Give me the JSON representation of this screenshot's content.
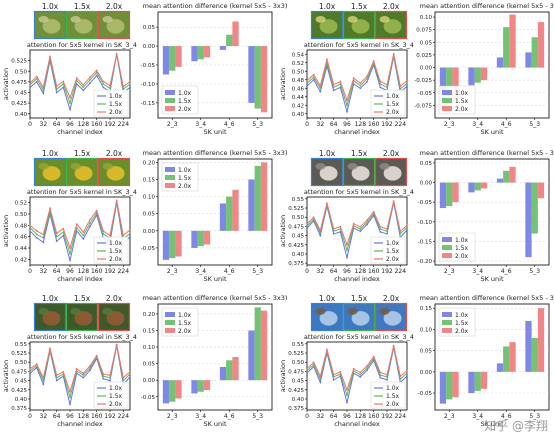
{
  "watermark": "知乎 @李翔",
  "colors": {
    "s1": "#6a73e0",
    "s2": "#5cb85c",
    "s3": "#f07070"
  },
  "legend_labels": [
    "1.0x",
    "1.5x",
    "2.0x"
  ],
  "scale_labels": [
    "1.0x",
    "1.5x",
    "2.0x"
  ],
  "chart_data": [
    {
      "type": "line",
      "panel": 1,
      "thumb_caption": "attention for 5x5 kernel in SK_3_4",
      "images": [
        "pole",
        "pole",
        "pole"
      ],
      "xlabel": "channel index",
      "ylabel": "activation",
      "x": [
        0,
        16,
        32,
        48,
        64,
        80,
        96,
        112,
        128,
        144,
        160,
        176,
        192,
        208,
        224,
        240
      ],
      "xticks": [
        0,
        32,
        64,
        96,
        128,
        160,
        192,
        224
      ],
      "ylim": [
        0.39,
        0.55
      ],
      "yticks": [
        0.4,
        0.425,
        0.45,
        0.475,
        0.5,
        0.525
      ],
      "series": [
        {
          "name": "1.0x",
          "values": [
            0.462,
            0.475,
            0.448,
            0.525,
            0.45,
            0.462,
            0.41,
            0.47,
            0.455,
            0.472,
            0.49,
            0.462,
            0.452,
            0.54,
            0.45,
            0.462
          ]
        },
        {
          "name": "1.5x",
          "values": [
            0.468,
            0.482,
            0.455,
            0.53,
            0.458,
            0.47,
            0.425,
            0.478,
            0.462,
            0.48,
            0.497,
            0.47,
            0.46,
            0.54,
            0.458,
            0.47
          ]
        },
        {
          "name": "2.0x",
          "values": [
            0.472,
            0.488,
            0.462,
            0.535,
            0.465,
            0.476,
            0.438,
            0.484,
            0.468,
            0.486,
            0.502,
            0.476,
            0.466,
            0.541,
            0.464,
            0.476
          ]
        }
      ]
    },
    {
      "type": "bar",
      "panel": 1,
      "title": "mean attention difference (kernel 5x5 - 3x3)",
      "xlabel": "SK unit",
      "categories": [
        "2_3",
        "3_4",
        "4_6",
        "5_3"
      ],
      "ylim": [
        -0.19,
        0.09
      ],
      "yticks": [
        -0.15,
        -0.1,
        -0.05,
        0.0,
        0.05
      ],
      "series": [
        {
          "name": "1.0x",
          "values": [
            -0.075,
            -0.04,
            -0.01,
            -0.15
          ]
        },
        {
          "name": "1.5x",
          "values": [
            -0.065,
            -0.035,
            0.03,
            -0.165
          ]
        },
        {
          "name": "2.0x",
          "values": [
            -0.055,
            -0.03,
            0.065,
            -0.175
          ]
        }
      ]
    },
    {
      "type": "line",
      "panel": 2,
      "thumb_caption": "attention for 5x5 kernel in SK_3_4",
      "images": [
        "ball",
        "ball",
        "ball"
      ],
      "xlabel": "channel index",
      "ylabel": "activation",
      "x": [
        0,
        16,
        32,
        48,
        64,
        80,
        96,
        112,
        128,
        144,
        160,
        176,
        192,
        208,
        224,
        240
      ],
      "xticks": [
        0,
        32,
        64,
        96,
        128,
        160,
        192,
        224
      ],
      "ylim": [
        0.39,
        0.55
      ],
      "yticks": [
        0.4,
        0.42,
        0.44,
        0.46,
        0.48,
        0.5,
        0.52,
        0.54
      ],
      "series": [
        {
          "name": "1.0x",
          "values": [
            0.465,
            0.48,
            0.452,
            0.512,
            0.455,
            0.462,
            0.405,
            0.47,
            0.46,
            0.475,
            0.515,
            0.462,
            0.455,
            0.535,
            0.45,
            0.465
          ]
        },
        {
          "name": "1.5x",
          "values": [
            0.472,
            0.486,
            0.46,
            0.52,
            0.462,
            0.47,
            0.42,
            0.478,
            0.466,
            0.482,
            0.52,
            0.47,
            0.462,
            0.538,
            0.458,
            0.472
          ]
        },
        {
          "name": "2.0x",
          "values": [
            0.478,
            0.492,
            0.466,
            0.528,
            0.468,
            0.476,
            0.432,
            0.484,
            0.472,
            0.488,
            0.524,
            0.476,
            0.468,
            0.541,
            0.465,
            0.478
          ]
        }
      ]
    },
    {
      "type": "bar",
      "panel": 2,
      "title": "mean attention difference (kernel 5x5 - 3x3)",
      "xlabel": "SK unit",
      "categories": [
        "2_3",
        "3_4",
        "4_6",
        "5_3"
      ],
      "ylim": [
        -0.1,
        0.11
      ],
      "yticks": [
        -0.075,
        -0.05,
        -0.025,
        0.0,
        0.025,
        0.05,
        0.075,
        0.1
      ],
      "series": [
        {
          "name": "1.0x",
          "values": [
            -0.085,
            -0.035,
            0.02,
            0.03
          ]
        },
        {
          "name": "1.5x",
          "values": [
            -0.075,
            -0.03,
            0.08,
            0.06
          ]
        },
        {
          "name": "2.0x",
          "values": [
            -0.065,
            -0.025,
            0.105,
            0.09
          ]
        }
      ]
    },
    {
      "type": "line",
      "panel": 3,
      "thumb_caption": "attention for 5x5 kernel in SK_3_4",
      "images": [
        "leaf",
        "leaf",
        "leaf"
      ],
      "xlabel": "channel index",
      "ylabel": "activation",
      "x": [
        0,
        16,
        32,
        48,
        64,
        80,
        96,
        112,
        128,
        144,
        160,
        176,
        192,
        208,
        224,
        240
      ],
      "xticks": [
        0,
        32,
        64,
        96,
        128,
        160,
        192,
        224
      ],
      "ylim": [
        0.41,
        0.53
      ],
      "yticks": [
        0.42,
        0.44,
        0.46,
        0.48,
        0.5,
        0.52
      ],
      "series": [
        {
          "name": "1.0x",
          "values": [
            0.47,
            0.458,
            0.45,
            0.5,
            0.452,
            0.462,
            0.418,
            0.47,
            0.456,
            0.478,
            0.498,
            0.458,
            0.45,
            0.52,
            0.448,
            0.46
          ]
        },
        {
          "name": "1.5x",
          "values": [
            0.476,
            0.464,
            0.458,
            0.505,
            0.46,
            0.468,
            0.43,
            0.476,
            0.462,
            0.484,
            0.502,
            0.465,
            0.457,
            0.522,
            0.456,
            0.466
          ]
        },
        {
          "name": "2.0x",
          "values": [
            0.48,
            0.47,
            0.464,
            0.51,
            0.466,
            0.474,
            0.44,
            0.482,
            0.468,
            0.49,
            0.506,
            0.47,
            0.462,
            0.524,
            0.462,
            0.472
          ]
        }
      ]
    },
    {
      "type": "bar",
      "panel": 3,
      "title": "mean attention difference (kernel 5x5 - 3x3)",
      "xlabel": "SK unit",
      "categories": [
        "2_3",
        "3_4",
        "4_6",
        "5_3"
      ],
      "ylim": [
        -0.1,
        0.21
      ],
      "yticks": [
        -0.05,
        0.0,
        0.05,
        0.1,
        0.15,
        0.2
      ],
      "series": [
        {
          "name": "1.0x",
          "values": [
            -0.085,
            -0.05,
            0.08,
            0.15
          ]
        },
        {
          "name": "1.5x",
          "values": [
            -0.08,
            -0.045,
            0.1,
            0.19
          ]
        },
        {
          "name": "2.0x",
          "values": [
            -0.075,
            -0.04,
            0.12,
            0.2
          ]
        }
      ]
    },
    {
      "type": "line",
      "panel": 4,
      "thumb_caption": "attention for 5x5 kernel in SK_3_4",
      "images": [
        "bird",
        "bird",
        "bird"
      ],
      "xlabel": "channel index",
      "ylabel": "activation",
      "x": [
        0,
        16,
        32,
        48,
        64,
        80,
        96,
        112,
        128,
        144,
        160,
        176,
        192,
        208,
        224,
        240
      ],
      "xticks": [
        0,
        32,
        64,
        96,
        128,
        160,
        192,
        224
      ],
      "ylim": [
        0.37,
        0.555
      ],
      "yticks": [
        0.375,
        0.4,
        0.425,
        0.45,
        0.475,
        0.5,
        0.525,
        0.55
      ],
      "series": [
        {
          "name": "1.0x",
          "values": [
            0.47,
            0.49,
            0.45,
            0.53,
            0.455,
            0.46,
            0.39,
            0.47,
            0.462,
            0.48,
            0.505,
            0.46,
            0.455,
            0.54,
            0.445,
            0.465
          ]
        },
        {
          "name": "1.5x",
          "values": [
            0.476,
            0.495,
            0.458,
            0.534,
            0.462,
            0.468,
            0.41,
            0.476,
            0.468,
            0.486,
            0.51,
            0.468,
            0.462,
            0.542,
            0.455,
            0.472
          ]
        },
        {
          "name": "2.0x",
          "values": [
            0.482,
            0.5,
            0.464,
            0.538,
            0.468,
            0.474,
            0.425,
            0.482,
            0.474,
            0.492,
            0.515,
            0.474,
            0.468,
            0.544,
            0.462,
            0.478
          ]
        }
      ]
    },
    {
      "type": "bar",
      "panel": 4,
      "title": "mean attention difference (kernel 5x5 - 3x3)",
      "xlabel": "SK unit",
      "categories": [
        "2_3",
        "3_4",
        "4_6",
        "5_3"
      ],
      "ylim": [
        -0.21,
        0.06
      ],
      "yticks": [
        -0.2,
        -0.15,
        -0.1,
        -0.05,
        0.0,
        0.05
      ],
      "series": [
        {
          "name": "1.0x",
          "values": [
            -0.065,
            -0.025,
            0.01,
            -0.19
          ]
        },
        {
          "name": "1.5x",
          "values": [
            -0.06,
            -0.02,
            0.03,
            -0.13
          ]
        },
        {
          "name": "2.0x",
          "values": [
            -0.05,
            -0.015,
            0.04,
            -0.04
          ]
        }
      ]
    },
    {
      "type": "line",
      "panel": 5,
      "thumb_caption": "attention for 5x5 kernel in SK_3_4",
      "images": [
        "dog",
        "dog",
        "dog"
      ],
      "xlabel": "channel index",
      "ylabel": "activation",
      "x": [
        0,
        16,
        32,
        48,
        64,
        80,
        96,
        112,
        128,
        144,
        160,
        176,
        192,
        208,
        224,
        240
      ],
      "xticks": [
        0,
        32,
        64,
        96,
        128,
        160,
        192,
        224
      ],
      "ylim": [
        0.37,
        0.555
      ],
      "yticks": [
        0.375,
        0.4,
        0.425,
        0.45,
        0.475,
        0.5,
        0.525,
        0.55
      ],
      "series": [
        {
          "name": "1.0x",
          "values": [
            0.47,
            0.485,
            0.44,
            0.53,
            0.45,
            0.462,
            0.385,
            0.47,
            0.458,
            0.478,
            0.51,
            0.455,
            0.45,
            0.545,
            0.44,
            0.46
          ]
        },
        {
          "name": "1.5x",
          "values": [
            0.476,
            0.49,
            0.45,
            0.534,
            0.458,
            0.468,
            0.405,
            0.476,
            0.465,
            0.484,
            0.514,
            0.462,
            0.458,
            0.546,
            0.45,
            0.468
          ]
        },
        {
          "name": "2.0x",
          "values": [
            0.482,
            0.495,
            0.458,
            0.538,
            0.465,
            0.474,
            0.42,
            0.482,
            0.47,
            0.49,
            0.518,
            0.468,
            0.464,
            0.548,
            0.458,
            0.474
          ]
        }
      ]
    },
    {
      "type": "bar",
      "panel": 5,
      "title": "mean attention difference (kernel 5x5 - 3x3)",
      "xlabel": "SK unit",
      "categories": [
        "2_3",
        "3_4",
        "4_6",
        "5_3"
      ],
      "ylim": [
        -0.09,
        0.23
      ],
      "yticks": [
        -0.05,
        0.0,
        0.05,
        0.1,
        0.15,
        0.2
      ],
      "series": [
        {
          "name": "1.0x",
          "values": [
            -0.07,
            -0.04,
            0.04,
            0.15
          ]
        },
        {
          "name": "1.5x",
          "values": [
            -0.065,
            -0.035,
            0.06,
            0.22
          ]
        },
        {
          "name": "2.0x",
          "values": [
            -0.055,
            -0.03,
            0.07,
            0.21
          ]
        }
      ]
    },
    {
      "type": "line",
      "panel": 6,
      "thumb_caption": "attention for 5x5 kernel in SK_3_4",
      "images": [
        "sky",
        "sky",
        "sky"
      ],
      "xlabel": "channel index",
      "ylabel": "activation",
      "x": [
        0,
        16,
        32,
        48,
        64,
        80,
        96,
        112,
        128,
        144,
        160,
        176,
        192,
        208,
        224,
        240
      ],
      "xticks": [
        0,
        32,
        64,
        96,
        128,
        160,
        192,
        224
      ],
      "ylim": [
        0.37,
        0.555
      ],
      "yticks": [
        0.375,
        0.4,
        0.425,
        0.45,
        0.475,
        0.5,
        0.525,
        0.55
      ],
      "series": [
        {
          "name": "1.0x",
          "values": [
            0.47,
            0.488,
            0.445,
            0.525,
            0.452,
            0.462,
            0.39,
            0.47,
            0.46,
            0.478,
            0.505,
            0.458,
            0.452,
            0.54,
            0.445,
            0.462
          ]
        },
        {
          "name": "1.5x",
          "values": [
            0.476,
            0.494,
            0.454,
            0.53,
            0.46,
            0.468,
            0.41,
            0.476,
            0.466,
            0.484,
            0.51,
            0.465,
            0.46,
            0.542,
            0.454,
            0.47
          ]
        },
        {
          "name": "2.0x",
          "values": [
            0.482,
            0.5,
            0.462,
            0.535,
            0.466,
            0.474,
            0.425,
            0.482,
            0.472,
            0.49,
            0.515,
            0.472,
            0.466,
            0.545,
            0.462,
            0.476
          ]
        }
      ]
    },
    {
      "type": "bar",
      "panel": 6,
      "title": "mean attention difference (kernel 5x5 - 3x3)",
      "xlabel": "SK unit",
      "categories": [
        "2_3",
        "3_4",
        "4_6",
        "5_3"
      ],
      "ylim": [
        -0.09,
        0.16
      ],
      "yticks": [
        -0.05,
        0.0,
        0.05,
        0.1,
        0.15
      ],
      "series": [
        {
          "name": "1.0x",
          "values": [
            -0.075,
            -0.05,
            0.02,
            0.12
          ]
        },
        {
          "name": "1.5x",
          "values": [
            -0.065,
            -0.045,
            0.06,
            0.08
          ]
        },
        {
          "name": "2.0x",
          "values": [
            -0.06,
            -0.04,
            0.07,
            0.15
          ]
        }
      ]
    }
  ]
}
